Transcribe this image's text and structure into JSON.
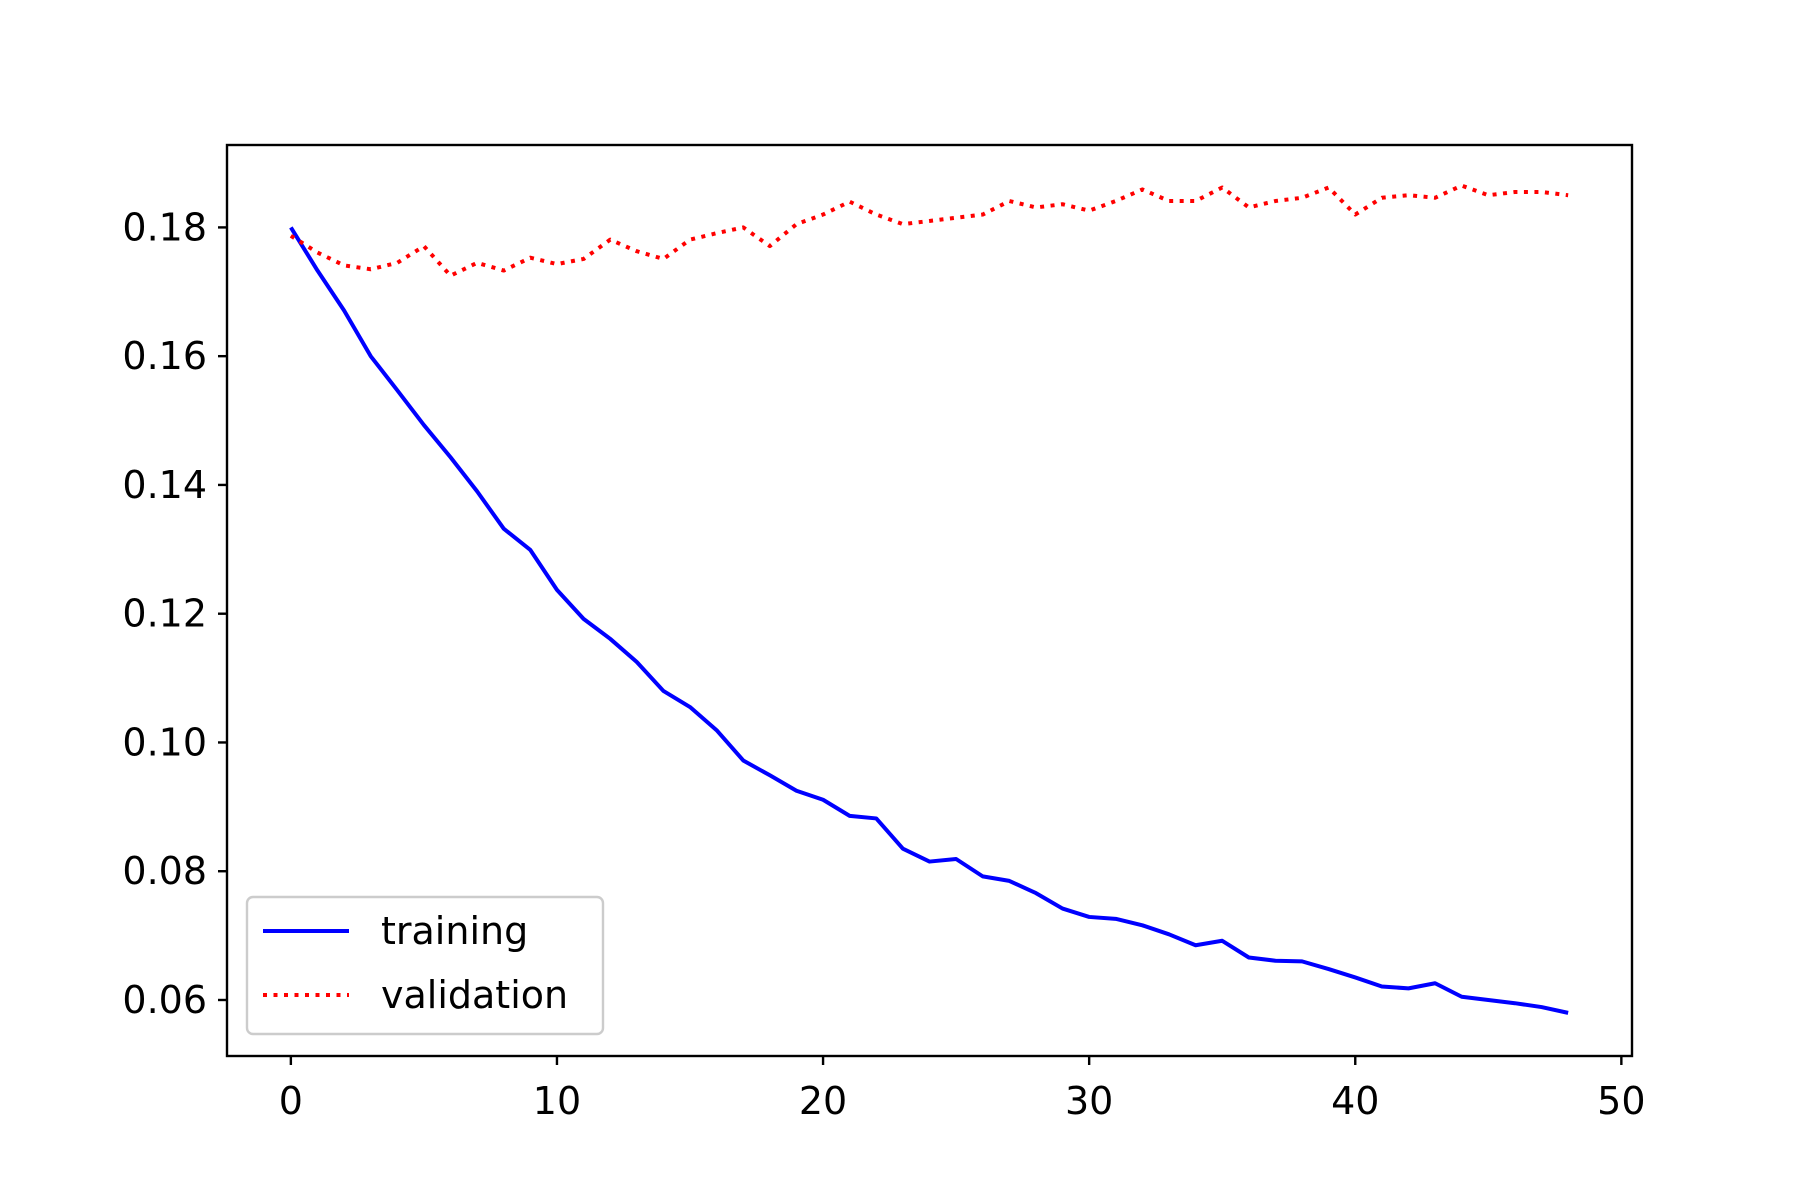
{
  "chart_data": {
    "type": "line",
    "title": "",
    "xlabel": "",
    "ylabel": "",
    "xlim": [
      -2.4,
      50.4
    ],
    "ylim": [
      0.0513,
      0.1928
    ],
    "xticks": [
      0,
      10,
      20,
      30,
      40,
      50
    ],
    "yticks": [
      0.06,
      0.08,
      0.1,
      0.12,
      0.14,
      0.16,
      0.18
    ],
    "xtick_labels": [
      "0",
      "10",
      "20",
      "30",
      "40",
      "50"
    ],
    "ytick_labels": [
      "0.06",
      "0.08",
      "0.10",
      "0.12",
      "0.14",
      "0.16",
      "0.18"
    ],
    "grid": false,
    "legend_position": "lower-left",
    "x": [
      0,
      1,
      2,
      3,
      4,
      5,
      6,
      7,
      8,
      9,
      10,
      11,
      12,
      13,
      14,
      15,
      16,
      17,
      18,
      19,
      20,
      21,
      22,
      23,
      24,
      25,
      26,
      27,
      28,
      29,
      30,
      31,
      32,
      33,
      34,
      35,
      36,
      37,
      38,
      39,
      40,
      41,
      42,
      43,
      44,
      45,
      46,
      47,
      48
    ],
    "series": [
      {
        "name": "training",
        "color": "#0000ff",
        "line_style": "solid",
        "values": [
          0.18,
          0.1733,
          0.1671,
          0.16,
          0.1547,
          0.1493,
          0.1443,
          0.139,
          0.1332,
          0.1299,
          0.1237,
          0.1192,
          0.1161,
          0.1125,
          0.108,
          0.1055,
          0.1019,
          0.0972,
          0.0949,
          0.0925,
          0.0911,
          0.0886,
          0.0882,
          0.0835,
          0.0815,
          0.0819,
          0.0792,
          0.0785,
          0.0766,
          0.0742,
          0.0729,
          0.0726,
          0.0716,
          0.0702,
          0.0685,
          0.0692,
          0.0666,
          0.0661,
          0.066,
          0.0648,
          0.0635,
          0.0621,
          0.0618,
          0.0626,
          0.0605,
          0.06,
          0.0595,
          0.0589,
          0.058
        ]
      },
      {
        "name": "validation",
        "color": "#ff0000",
        "line_style": "dotted",
        "values": [
          0.1787,
          0.1761,
          0.1741,
          0.1735,
          0.1745,
          0.1771,
          0.1725,
          0.1745,
          0.1733,
          0.1753,
          0.1743,
          0.1751,
          0.1781,
          0.1763,
          0.1751,
          0.1781,
          0.1791,
          0.18,
          0.1771,
          0.1805,
          0.182,
          0.184,
          0.182,
          0.1805,
          0.181,
          0.1815,
          0.182,
          0.1841,
          0.1831,
          0.1836,
          0.1826,
          0.1841,
          0.1859,
          0.1841,
          0.1841,
          0.1862,
          0.1831,
          0.1841,
          0.1846,
          0.1862,
          0.182,
          0.1846,
          0.185,
          0.1846,
          0.1865,
          0.185,
          0.1855,
          0.1855,
          0.185
        ]
      }
    ]
  }
}
